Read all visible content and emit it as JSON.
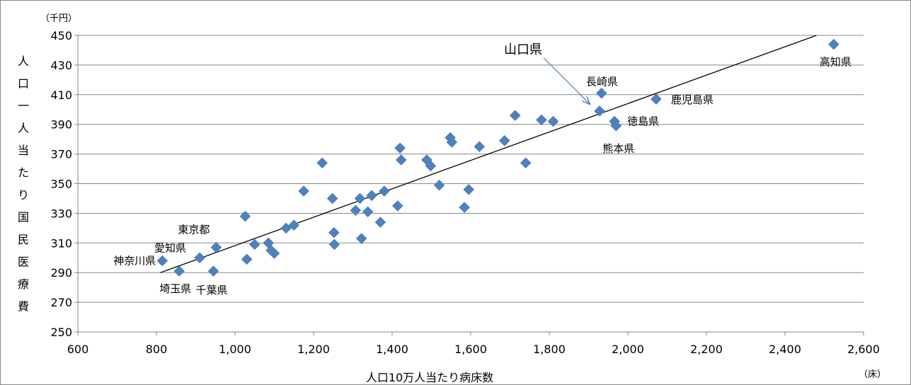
{
  "chart_data": {
    "type": "scatter",
    "title": "",
    "xlabel": "人口10万人当たり病床数",
    "ylabel": "人口一人当たり国民医療費",
    "x_unit": "（床）",
    "y_unit": "（千円）",
    "xlim": [
      600,
      2600
    ],
    "ylim": [
      250,
      450
    ],
    "x_ticks": [
      "600",
      "800",
      "1,000",
      "1,200",
      "1,400",
      "1,600",
      "1,800",
      "2,000",
      "2,200",
      "2,400",
      "2,600"
    ],
    "y_ticks": [
      "250",
      "270",
      "290",
      "310",
      "330",
      "350",
      "370",
      "390",
      "410",
      "430",
      "450"
    ],
    "grid": "horizontal",
    "marker_color": "#4F81BD",
    "trendline": {
      "x": [
        810,
        2480
      ],
      "y": [
        290,
        450
      ],
      "color": "#000000"
    },
    "callout": {
      "text": "山口県",
      "x": 1928,
      "y": 399
    },
    "points": [
      {
        "x": 815,
        "y": 298,
        "label": "神奈川県"
      },
      {
        "x": 858,
        "y": 291,
        "label": "埼玉県"
      },
      {
        "x": 910,
        "y": 300,
        "label": "愛知県"
      },
      {
        "x": 945,
        "y": 291,
        "label": "千葉県"
      },
      {
        "x": 952,
        "y": 307,
        "label": "東京都"
      },
      {
        "x": 1026,
        "y": 328,
        "label": ""
      },
      {
        "x": 1030,
        "y": 299,
        "label": ""
      },
      {
        "x": 1050,
        "y": 309,
        "label": ""
      },
      {
        "x": 1085,
        "y": 310,
        "label": ""
      },
      {
        "x": 1092,
        "y": 305,
        "label": ""
      },
      {
        "x": 1100,
        "y": 303,
        "label": ""
      },
      {
        "x": 1130,
        "y": 320,
        "label": ""
      },
      {
        "x": 1150,
        "y": 322,
        "label": ""
      },
      {
        "x": 1175,
        "y": 345,
        "label": ""
      },
      {
        "x": 1222,
        "y": 364,
        "label": ""
      },
      {
        "x": 1248,
        "y": 340,
        "label": ""
      },
      {
        "x": 1252,
        "y": 317,
        "label": ""
      },
      {
        "x": 1253,
        "y": 309,
        "label": ""
      },
      {
        "x": 1307,
        "y": 332,
        "label": ""
      },
      {
        "x": 1318,
        "y": 340,
        "label": ""
      },
      {
        "x": 1322,
        "y": 313,
        "label": ""
      },
      {
        "x": 1338,
        "y": 331,
        "label": ""
      },
      {
        "x": 1348,
        "y": 342,
        "label": ""
      },
      {
        "x": 1370,
        "y": 324,
        "label": ""
      },
      {
        "x": 1380,
        "y": 345,
        "label": ""
      },
      {
        "x": 1414,
        "y": 335,
        "label": ""
      },
      {
        "x": 1420,
        "y": 374,
        "label": ""
      },
      {
        "x": 1423,
        "y": 366,
        "label": ""
      },
      {
        "x": 1488,
        "y": 366,
        "label": ""
      },
      {
        "x": 1498,
        "y": 362,
        "label": ""
      },
      {
        "x": 1520,
        "y": 349,
        "label": ""
      },
      {
        "x": 1548,
        "y": 381,
        "label": ""
      },
      {
        "x": 1552,
        "y": 378,
        "label": ""
      },
      {
        "x": 1584,
        "y": 334,
        "label": ""
      },
      {
        "x": 1595,
        "y": 346,
        "label": ""
      },
      {
        "x": 1622,
        "y": 375,
        "label": ""
      },
      {
        "x": 1686,
        "y": 379,
        "label": ""
      },
      {
        "x": 1713,
        "y": 396,
        "label": ""
      },
      {
        "x": 1740,
        "y": 364,
        "label": ""
      },
      {
        "x": 1780,
        "y": 393,
        "label": ""
      },
      {
        "x": 1810,
        "y": 392,
        "label": ""
      },
      {
        "x": 1928,
        "y": 399,
        "label": ""
      },
      {
        "x": 1933,
        "y": 411,
        "label": "長崎県"
      },
      {
        "x": 1966,
        "y": 392,
        "label": "徳島県"
      },
      {
        "x": 1970,
        "y": 389,
        "label": "熊本県"
      },
      {
        "x": 2072,
        "y": 407,
        "label": "鹿児島県"
      },
      {
        "x": 2524,
        "y": 444,
        "label": "高知県"
      }
    ]
  }
}
